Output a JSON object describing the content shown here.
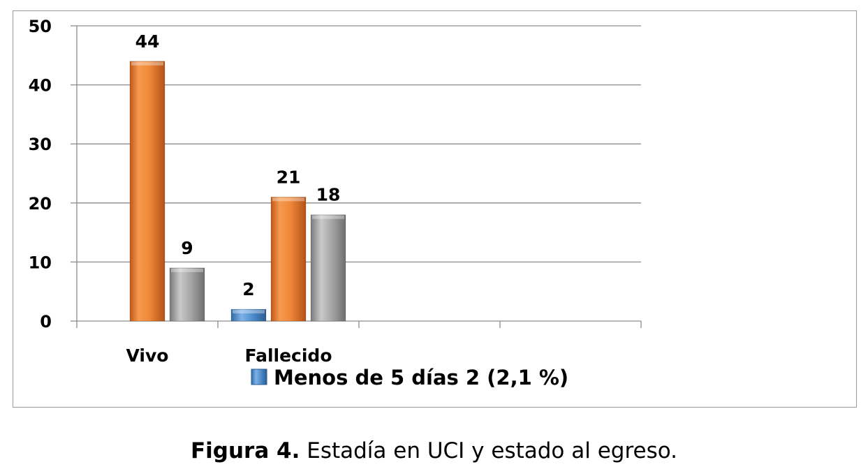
{
  "chart_data": {
    "type": "bar",
    "categories": [
      "Vivo",
      "Fallecido",
      "",
      ""
    ],
    "series": [
      {
        "name": "Menos de 5 días 2 (2,1 %)",
        "values": [
          null,
          2,
          null,
          null
        ],
        "color": "#4f8fcf"
      },
      {
        "name": "",
        "values": [
          44,
          21,
          null,
          null
        ],
        "color": "#f0883a"
      },
      {
        "name": "",
        "values": [
          9,
          18,
          null,
          null
        ],
        "color": "#a6a6a6"
      }
    ],
    "ylim": [
      0,
      50
    ],
    "yticks": [
      "0",
      "10",
      "20",
      "30",
      "40",
      "50"
    ],
    "grid": true,
    "legend_position": "bottom",
    "legend_visible": [
      "Menos de 5 días 2 (2,1 %)"
    ]
  },
  "caption": {
    "prefix": "Figura 4.",
    "text": " Estadía en UCI y estado al egreso."
  }
}
